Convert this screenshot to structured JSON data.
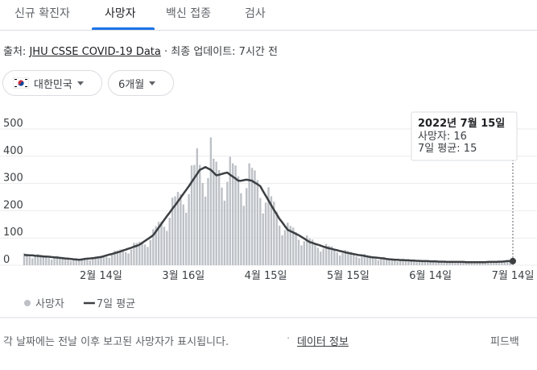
{
  "tabs": [
    "신규 확진자",
    "사망자",
    "백신 접종",
    "검사"
  ],
  "source": {
    "prefix": "출처:",
    "link": "JHU CSSE COVID-19 Data",
    "updated": "· 최종 업데이트: 7시간 전"
  },
  "chips": [
    "대한민국",
    "6개월"
  ],
  "tooltip": {
    "date": "2022년 7월 15일",
    "lines": [
      "사망자: 16",
      "7일 평균: 15"
    ]
  },
  "footer": {
    "note": "각 날짜에는 전날 이후 보고된 사망자가 표시됩니다.",
    "link": "데이터 정보",
    "feedback": "피드백"
  },
  "chart_data": {
    "type": "bar",
    "ylim": [
      0,
      500
    ],
    "yticks": [
      0,
      100,
      200,
      300,
      400,
      500
    ],
    "grid": true,
    "categories": [
      null,
      null,
      null,
      null,
      null,
      null,
      null,
      null,
      null,
      null,
      null,
      null,
      null,
      null,
      null,
      null,
      null,
      null,
      null,
      null,
      null,
      null,
      null,
      null,
      null,
      null,
      null,
      null,
      "2월 14일",
      null,
      null,
      null,
      null,
      null,
      null,
      null,
      null,
      null,
      null,
      null,
      null,
      null,
      null,
      null,
      null,
      null,
      null,
      null,
      null,
      null,
      null,
      null,
      null,
      null,
      null,
      null,
      null,
      null,
      "3월 16일",
      null,
      null,
      null,
      null,
      null,
      null,
      null,
      null,
      null,
      null,
      null,
      null,
      null,
      null,
      null,
      null,
      null,
      null,
      null,
      null,
      null,
      null,
      null,
      null,
      null,
      null,
      null,
      null,
      null,
      "4월 15일",
      null,
      null,
      null,
      null,
      null,
      null,
      null,
      null,
      null,
      null,
      null,
      null,
      null,
      null,
      null,
      null,
      null,
      null,
      null,
      null,
      null,
      null,
      null,
      null,
      null,
      null,
      null,
      null,
      null,
      "5월 15일",
      null,
      null,
      null,
      null,
      null,
      null,
      null,
      null,
      null,
      null,
      null,
      null,
      null,
      null,
      null,
      null,
      null,
      null,
      null,
      null,
      null,
      null,
      null,
      null,
      null,
      null,
      null,
      null,
      null,
      "6월 14일",
      null,
      null,
      null,
      null,
      null,
      null,
      null,
      null,
      null,
      null,
      null,
      null,
      null,
      null,
      null,
      null,
      null,
      null,
      null,
      null,
      null,
      null,
      null,
      null,
      null,
      null,
      null,
      null,
      null,
      "7월 14일"
    ],
    "series": [
      {
        "name": "사망자",
        "type": "bar",
        "color": "#bdc1c6",
        "values": [
          44,
          39,
          31,
          25,
          32,
          41,
          38,
          37,
          34,
          26,
          21,
          26,
          34,
          31,
          30,
          26,
          20,
          16,
          20,
          25,
          23,
          24,
          24,
          20,
          18,
          23,
          32,
          33,
          35,
          35,
          31,
          27,
          37,
          53,
          54,
          58,
          57,
          48,
          43,
          58,
          82,
          82,
          86,
          86,
          76,
          67,
          93,
          132,
          143,
          159,
          160,
          141,
          126,
          174,
          248,
          253,
          269,
          260,
          223,
          193,
          261,
          366,
          368,
          429,
          368,
          302,
          252,
          320,
          469,
          391,
          380,
          349,
          285,
          237,
          306,
          398,
          374,
          366,
          326,
          264,
          218,
          283,
          374,
          357,
          348,
          312,
          247,
          190,
          230,
          286,
          253,
          233,
          196,
          145,
          110,
          129,
          156,
          144,
          138,
          121,
          94,
          73,
          88,
          109,
          98,
          94,
          82,
          64,
          50,
          61,
          78,
          71,
          69,
          60,
          47,
          36,
          45,
          56,
          52,
          49,
          43,
          33,
          26,
          32,
          41,
          37,
          35,
          30,
          24,
          19,
          23,
          30,
          26,
          25,
          22,
          17,
          14,
          17,
          23,
          21,
          21,
          18,
          14,
          11,
          14,
          18,
          17,
          17,
          15,
          12,
          10,
          12,
          16,
          15,
          14,
          13,
          10,
          8,
          11,
          14,
          14,
          13,
          12,
          9,
          8,
          10,
          13,
          13,
          13,
          13,
          10,
          8,
          11,
          16,
          15,
          16,
          16,
          13,
          16
        ]
      },
      {
        "name": "7일 평균",
        "type": "line",
        "color": "#3c4043",
        "values": [
          38,
          37,
          36,
          36,
          35,
          34,
          33,
          32,
          32,
          31,
          30,
          29,
          28,
          27,
          26,
          25,
          24,
          23,
          22,
          21,
          20,
          21,
          23,
          24,
          25,
          26,
          27,
          29,
          30,
          33,
          36,
          39,
          41,
          44,
          47,
          50,
          54,
          57,
          61,
          64,
          68,
          71,
          75,
          82,
          89,
          96,
          103,
          110,
          124,
          138,
          152,
          166,
          180,
          193,
          207,
          220,
          234,
          248,
          262,
          276,
          290,
          305,
          320,
          335,
          350,
          355,
          360,
          355,
          350,
          340,
          330,
          332,
          335,
          338,
          340,
          332,
          325,
          318,
          310,
          310,
          312,
          314,
          312,
          310,
          303,
          297,
          290,
          272,
          255,
          238,
          220,
          203,
          187,
          170,
          157,
          143,
          130,
          125,
          120,
          115,
          110,
          104,
          98,
          91,
          85,
          82,
          78,
          75,
          72,
          68,
          65,
          62,
          60,
          57,
          55,
          52,
          50,
          47,
          45,
          43,
          41,
          39,
          37,
          36,
          34,
          32,
          30,
          29,
          28,
          27,
          26,
          25,
          23,
          22,
          21,
          20,
          20,
          19,
          19,
          18,
          18,
          17,
          17,
          16,
          16,
          15,
          15,
          15,
          14,
          14,
          14,
          13,
          13,
          13,
          12,
          12,
          12,
          12,
          12,
          12,
          12,
          11,
          11,
          11,
          11,
          11,
          11,
          11,
          11,
          12,
          12,
          12,
          12,
          13,
          13,
          14,
          15,
          15,
          15
        ]
      }
    ]
  }
}
